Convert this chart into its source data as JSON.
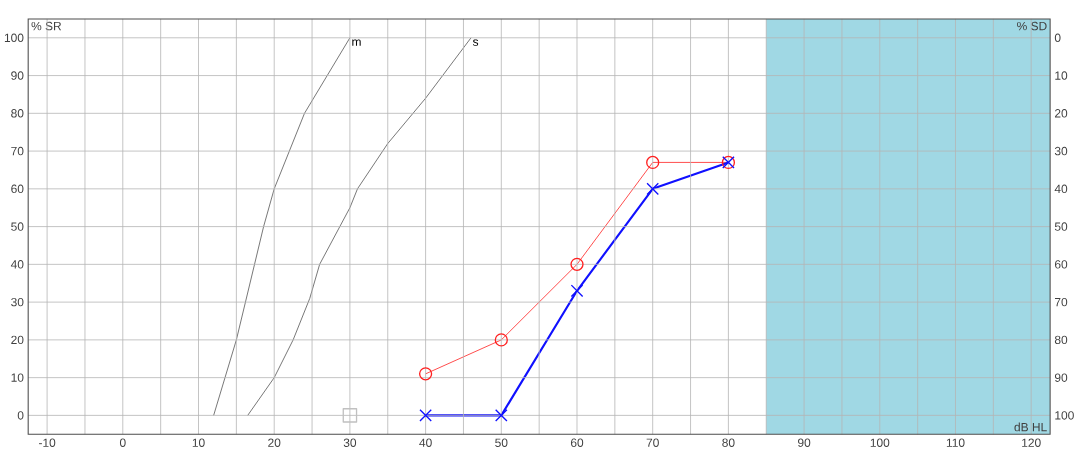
{
  "chart_data": {
    "type": "line",
    "xlabel": "dB HL",
    "ylabel": "% SR",
    "y2label": "% SD",
    "xlim": [
      -12.5,
      122.5
    ],
    "ylim": [
      -5,
      105
    ],
    "y2lim": [
      105,
      -5
    ],
    "xticks": [
      -10,
      {
        "value": -5,
        "label": null
      },
      0,
      {
        "value": 5,
        "label": null
      },
      10,
      {
        "value": 15,
        "label": null
      },
      20,
      {
        "value": 25,
        "label": null
      },
      30,
      {
        "value": 35,
        "label": null
      },
      40,
      {
        "value": 45,
        "label": null
      },
      50,
      {
        "value": 55,
        "label": null
      },
      60,
      {
        "value": 65,
        "label": null
      },
      70,
      {
        "value": 75,
        "label": null
      },
      80,
      {
        "value": 85,
        "label": null
      },
      90,
      {
        "value": 95,
        "label": null
      },
      100,
      {
        "value": 105,
        "label": null
      },
      110,
      {
        "value": 115,
        "label": null
      },
      120
    ],
    "yticks": [
      0,
      10,
      20,
      30,
      40,
      50,
      60,
      70,
      80,
      90,
      100
    ],
    "y2ticks": [
      0,
      10,
      20,
      30,
      40,
      50,
      60,
      70,
      80,
      90,
      100
    ],
    "grid": true,
    "bands": [
      {
        "axis": "x",
        "from": 85,
        "to": 122.5,
        "color": "#a0d8e4"
      }
    ],
    "annotations": [
      {
        "text": "m",
        "x": 30,
        "y": 100
      },
      {
        "text": "s",
        "x": 46,
        "y": 100
      }
    ],
    "series": [
      {
        "color": "#555555",
        "marker": "none",
        "x": [
          12,
          15,
          18.6,
          20,
          22,
          24,
          30
        ],
        "values": [
          0,
          20,
          50,
          60,
          70,
          80,
          100
        ]
      },
      {
        "color": "#555555",
        "marker": "none",
        "x": [
          16.5,
          20,
          22.5,
          24.7,
          26,
          30,
          31,
          35,
          40,
          46
        ],
        "values": [
          0,
          10,
          20,
          31,
          40,
          55,
          60,
          72,
          84,
          100
        ]
      },
      {
        "color": "#ff2020",
        "marker": "circle",
        "x": [
          40,
          50,
          60,
          70,
          80
        ],
        "values": [
          11,
          20,
          40,
          67,
          67
        ]
      },
      {
        "color": "#1010ff",
        "marker": "cross",
        "x": [
          40,
          50,
          60,
          70,
          80
        ],
        "values": [
          0,
          0,
          33,
          60,
          67
        ]
      },
      {
        "type": "scatter",
        "color": "#c0c0c0",
        "marker": "square",
        "x": [
          30
        ],
        "values": [
          0
        ]
      }
    ]
  }
}
